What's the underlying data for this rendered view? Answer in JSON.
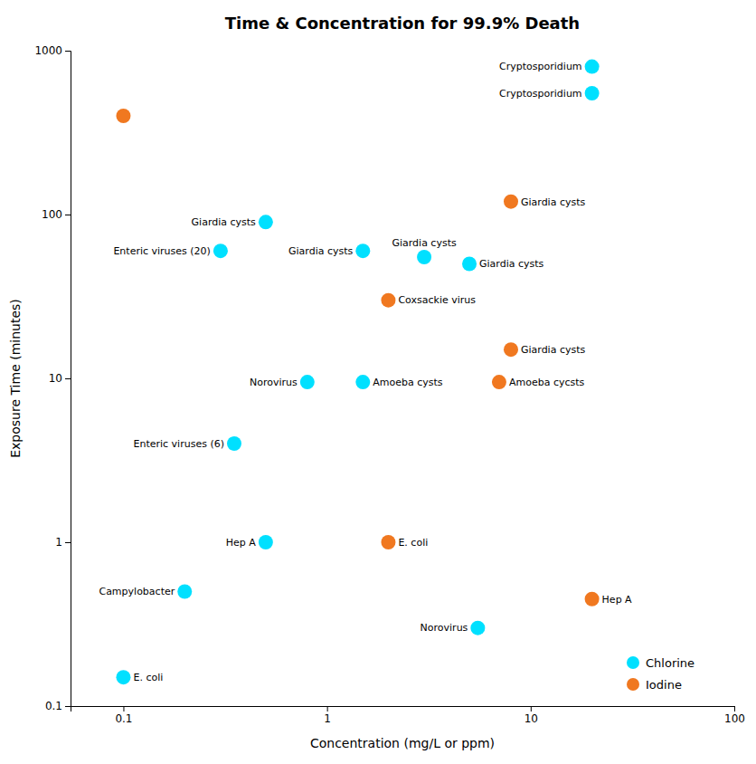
{
  "chart_data": {
    "type": "scatter",
    "title": "Time & Concentration for 99.9% Death",
    "xlabel": "Concentration (mg/L or ppm)",
    "ylabel": "Exposure Time (minutes)",
    "log": true,
    "xlim": [
      0.055,
      100
    ],
    "ylim": [
      0.1,
      1000
    ],
    "xticks": [
      0.1,
      1,
      10,
      100
    ],
    "yticks": [
      0.1,
      1,
      10,
      100,
      1000
    ],
    "grid": false,
    "legend": "lower right",
    "series": [
      {
        "name": "Chlorine",
        "color": "#00E0FF",
        "marker": "circle",
        "x": [
          0.1,
          0.2,
          0.5,
          0.35,
          0.8,
          1.5,
          0.3,
          0.5,
          1.5,
          3.0,
          5.0,
          20.0,
          20.0,
          5.5
        ],
        "values": [
          0.15,
          0.5,
          1.0,
          4.0,
          9.5,
          9.5,
          60.0,
          90.0,
          60.0,
          55.0,
          50.0,
          800.0,
          550.0,
          0.3
        ],
        "labels": [
          "E. coli",
          "Campylobacter",
          "Hep A",
          "Enteric viruses (6)",
          "Norovirus",
          "Amoeba cysts",
          "Enteric viruses (20)",
          "Giardia cysts",
          "Giardia cysts",
          "Giardia cysts",
          "Giardia cysts",
          "Cryptosporidium",
          "Cryptosporidium",
          "Norovirus"
        ]
      },
      {
        "name": "Iodine",
        "color": "#F07820",
        "marker": "circle",
        "x": [
          0.1,
          2.0,
          2.0,
          8.0,
          8.0,
          7.0,
          20.0
        ],
        "values": [
          400.0,
          1.0,
          30.0,
          120.0,
          15.0,
          9.5,
          0.45
        ],
        "labels": [
          null,
          "E. coli",
          "Coxsackie virus",
          "Giardia cysts",
          "Giardia cysts",
          "Amoeba cycsts",
          "Hep A"
        ]
      }
    ]
  }
}
